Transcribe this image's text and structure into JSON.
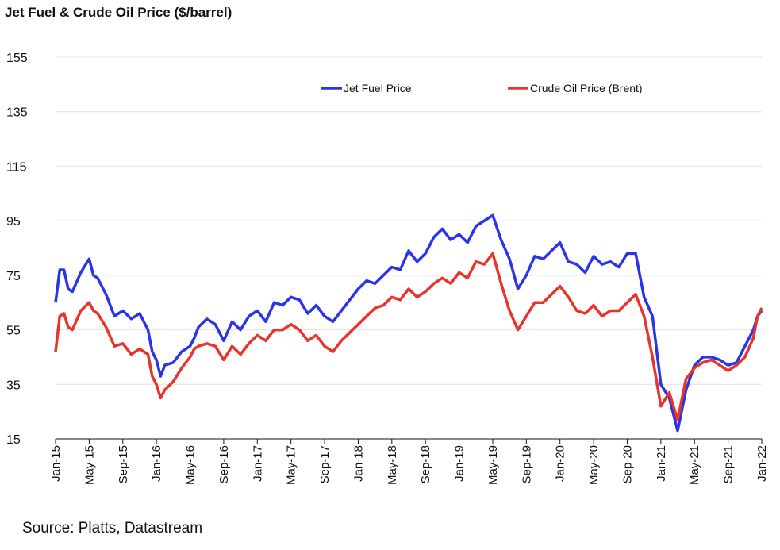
{
  "chart_data": {
    "type": "line",
    "title": "Jet Fuel & Crude Oil Price ($/barrel)",
    "source": "Source: Platts, Datastream",
    "xlabel": "",
    "ylabel": "",
    "ylim": [
      15,
      155
    ],
    "yticks": [
      15,
      35,
      55,
      75,
      95,
      115,
      135,
      155
    ],
    "x_tick_labels": [
      "Jan-15",
      "May-15",
      "Sep-15",
      "Jan-16",
      "May-16",
      "Sep-16",
      "Jan-17",
      "May-17",
      "Sep-17",
      "Jan-18",
      "May-18",
      "Sep-18",
      "Jan-19",
      "May-19",
      "Sep-19",
      "Jan-20",
      "May-20",
      "Sep-20",
      "Jan-21",
      "May-21",
      "Sep-21",
      "Jan-22"
    ],
    "x_unit": "month index from Jan-15 (0 = Jan-15, 84 = Jan-22)",
    "xlim": [
      0,
      84
    ],
    "grid": "horizontal",
    "legend_position": "top-center",
    "series": [
      {
        "name": "Jet Fuel Price",
        "color": "#2b35e8",
        "points": [
          [
            0,
            65
          ],
          [
            0.5,
            77
          ],
          [
            1,
            77
          ],
          [
            1.5,
            70
          ],
          [
            2,
            69
          ],
          [
            3,
            76
          ],
          [
            4,
            81
          ],
          [
            4.5,
            75
          ],
          [
            5,
            74
          ],
          [
            6,
            68
          ],
          [
            7,
            60
          ],
          [
            8,
            62
          ],
          [
            9,
            59
          ],
          [
            10,
            61
          ],
          [
            11,
            55
          ],
          [
            11.5,
            47
          ],
          [
            12,
            44
          ],
          [
            12.5,
            38
          ],
          [
            13,
            42
          ],
          [
            14,
            43
          ],
          [
            15,
            47
          ],
          [
            16,
            49
          ],
          [
            16.5,
            52
          ],
          [
            17,
            56
          ],
          [
            18,
            59
          ],
          [
            19,
            57
          ],
          [
            20,
            51
          ],
          [
            21,
            58
          ],
          [
            22,
            55
          ],
          [
            23,
            60
          ],
          [
            24,
            62
          ],
          [
            25,
            58
          ],
          [
            26,
            65
          ],
          [
            27,
            64
          ],
          [
            28,
            67
          ],
          [
            29,
            66
          ],
          [
            30,
            61
          ],
          [
            31,
            64
          ],
          [
            32,
            60
          ],
          [
            33,
            58
          ],
          [
            34,
            62
          ],
          [
            35,
            66
          ],
          [
            36,
            70
          ],
          [
            37,
            73
          ],
          [
            38,
            72
          ],
          [
            39,
            75
          ],
          [
            40,
            78
          ],
          [
            41,
            77
          ],
          [
            42,
            84
          ],
          [
            43,
            80
          ],
          [
            44,
            83
          ],
          [
            45,
            89
          ],
          [
            46,
            92
          ],
          [
            47,
            88
          ],
          [
            48,
            90
          ],
          [
            49,
            87
          ],
          [
            50,
            93
          ],
          [
            51,
            95
          ],
          [
            52,
            97
          ],
          [
            53,
            88
          ],
          [
            54,
            81
          ],
          [
            55,
            70
          ],
          [
            56,
            75
          ],
          [
            57,
            82
          ],
          [
            58,
            81
          ],
          [
            59,
            84
          ],
          [
            60,
            87
          ],
          [
            61,
            80
          ],
          [
            62,
            79
          ],
          [
            63,
            76
          ],
          [
            64,
            82
          ],
          [
            65,
            79
          ],
          [
            66,
            80
          ],
          [
            67,
            78
          ],
          [
            68,
            83
          ],
          [
            69,
            83
          ],
          [
            70,
            67
          ],
          [
            71,
            60
          ],
          [
            72,
            35
          ],
          [
            73,
            30
          ],
          [
            74,
            18
          ],
          [
            75,
            33
          ],
          [
            76,
            42
          ],
          [
            77,
            45
          ],
          [
            78,
            45
          ],
          [
            79,
            44
          ],
          [
            80,
            42
          ],
          [
            81,
            43
          ],
          [
            82,
            49
          ],
          [
            83,
            55
          ],
          [
            83.5,
            60
          ],
          [
            84,
            62
          ]
        ]
      },
      {
        "name": "Crude Oil Price (Brent)",
        "color": "#e8342b",
        "points": [
          [
            0,
            47
          ],
          [
            0.5,
            60
          ],
          [
            1,
            61
          ],
          [
            1.5,
            56
          ],
          [
            2,
            55
          ],
          [
            3,
            62
          ],
          [
            4,
            65
          ],
          [
            4.5,
            62
          ],
          [
            5,
            61
          ],
          [
            6,
            56
          ],
          [
            7,
            49
          ],
          [
            8,
            50
          ],
          [
            9,
            46
          ],
          [
            10,
            48
          ],
          [
            11,
            46
          ],
          [
            11.5,
            38
          ],
          [
            12,
            35
          ],
          [
            12.5,
            30
          ],
          [
            13,
            33
          ],
          [
            14,
            36
          ],
          [
            15,
            41
          ],
          [
            16,
            45
          ],
          [
            16.5,
            48
          ],
          [
            17,
            49
          ],
          [
            18,
            50
          ],
          [
            19,
            49
          ],
          [
            20,
            44
          ],
          [
            21,
            49
          ],
          [
            22,
            46
          ],
          [
            23,
            50
          ],
          [
            24,
            53
          ],
          [
            25,
            51
          ],
          [
            26,
            55
          ],
          [
            27,
            55
          ],
          [
            28,
            57
          ],
          [
            29,
            55
          ],
          [
            30,
            51
          ],
          [
            31,
            53
          ],
          [
            32,
            49
          ],
          [
            33,
            47
          ],
          [
            34,
            51
          ],
          [
            35,
            54
          ],
          [
            36,
            57
          ],
          [
            37,
            60
          ],
          [
            38,
            63
          ],
          [
            39,
            64
          ],
          [
            40,
            67
          ],
          [
            41,
            66
          ],
          [
            42,
            70
          ],
          [
            43,
            67
          ],
          [
            44,
            69
          ],
          [
            45,
            72
          ],
          [
            46,
            74
          ],
          [
            47,
            72
          ],
          [
            48,
            76
          ],
          [
            49,
            74
          ],
          [
            50,
            80
          ],
          [
            51,
            79
          ],
          [
            52,
            83
          ],
          [
            53,
            72
          ],
          [
            54,
            62
          ],
          [
            55,
            55
          ],
          [
            56,
            60
          ],
          [
            57,
            65
          ],
          [
            58,
            65
          ],
          [
            59,
            68
          ],
          [
            60,
            71
          ],
          [
            61,
            67
          ],
          [
            62,
            62
          ],
          [
            63,
            61
          ],
          [
            64,
            64
          ],
          [
            65,
            60
          ],
          [
            66,
            62
          ],
          [
            67,
            62
          ],
          [
            68,
            65
          ],
          [
            69,
            68
          ],
          [
            70,
            60
          ],
          [
            71,
            45
          ],
          [
            72,
            27
          ],
          [
            73,
            32
          ],
          [
            74,
            22
          ],
          [
            75,
            37
          ],
          [
            76,
            41
          ],
          [
            77,
            43
          ],
          [
            78,
            44
          ],
          [
            79,
            42
          ],
          [
            80,
            40
          ],
          [
            81,
            42
          ],
          [
            82,
            45
          ],
          [
            83,
            52
          ],
          [
            83.5,
            60
          ],
          [
            84,
            63
          ]
        ]
      }
    ]
  }
}
